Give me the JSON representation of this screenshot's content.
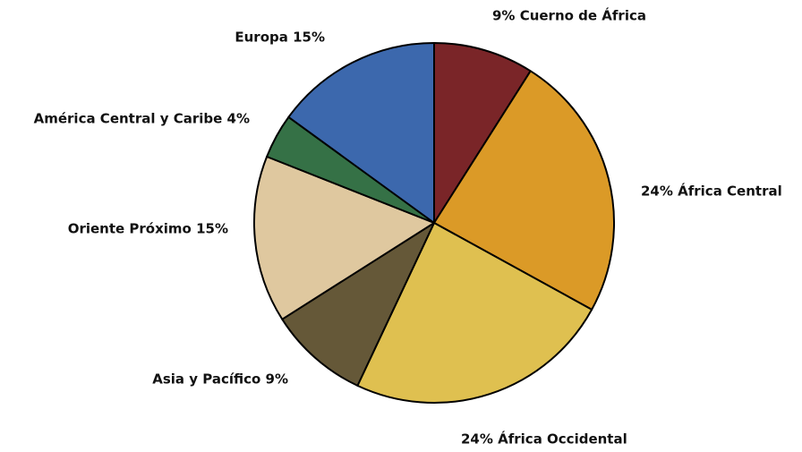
{
  "chart_data": {
    "type": "pie",
    "values": [
      9,
      24,
      24,
      9,
      15,
      4,
      15
    ],
    "value_labels": [
      "9% Cuerno de África",
      "24% África Central",
      "24% África Occidental",
      "Asia y Pacífico 9%",
      "Oriente Próximo 15%",
      "América Central y Caribe 4%",
      "Europa 15%"
    ],
    "colors": [
      "#7a2528",
      "#db9a27",
      "#dfc050",
      "#655838",
      "#dfc89f",
      "#357146",
      "#3c68ad"
    ]
  }
}
